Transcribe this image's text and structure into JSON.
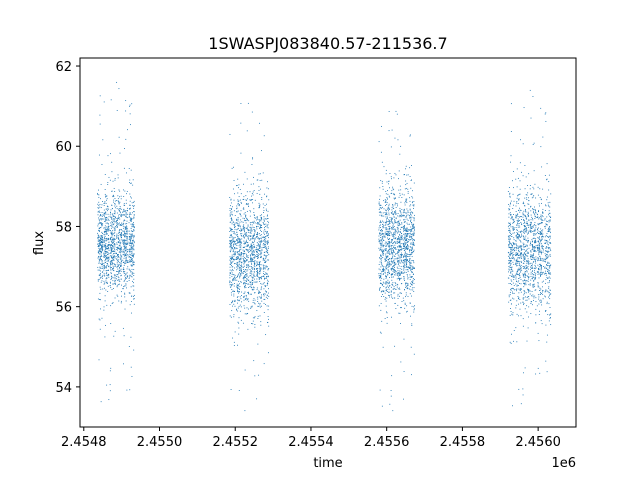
{
  "chart_data": {
    "type": "scatter",
    "title": "1SWASPJ083840.57-211536.7",
    "xlabel": "time",
    "ylabel": "flux",
    "x_offset_label": "1e6",
    "xlim": [
      2454790,
      2456100
    ],
    "ylim": [
      53.0,
      62.2
    ],
    "x_ticks": [
      2454800,
      2455000,
      2455200,
      2455400,
      2455600,
      2455800,
      2456000
    ],
    "x_tick_labels": [
      "2.4548",
      "2.4550",
      "2.4552",
      "2.4554",
      "2.4556",
      "2.4558",
      "2.4560"
    ],
    "y_ticks": [
      54,
      56,
      58,
      60,
      62
    ],
    "y_tick_labels": [
      "54",
      "56",
      "58",
      "60",
      "62"
    ],
    "grid": false,
    "point_color": "#1f77b4",
    "series": [
      {
        "clusters": [
          {
            "x_range": [
              2454835,
              2454935
            ],
            "y_center": 57.6,
            "y_core": [
              56.5,
              59.0
            ],
            "y_extent": [
              53.5,
              61.7
            ]
          },
          {
            "x_range": [
              2455184,
              2455290
            ],
            "y_center": 57.3,
            "y_core": [
              56.0,
              58.9
            ],
            "y_extent": [
              53.4,
              61.1
            ]
          },
          {
            "x_range": [
              2455578,
              2455675
            ],
            "y_center": 57.5,
            "y_core": [
              56.2,
              59.0
            ],
            "y_extent": [
              53.4,
              60.9
            ]
          },
          {
            "x_range": [
              2455920,
              2456035
            ],
            "y_center": 57.4,
            "y_core": [
              56.1,
              59.1
            ],
            "y_extent": [
              53.4,
              61.5
            ]
          }
        ]
      }
    ]
  }
}
